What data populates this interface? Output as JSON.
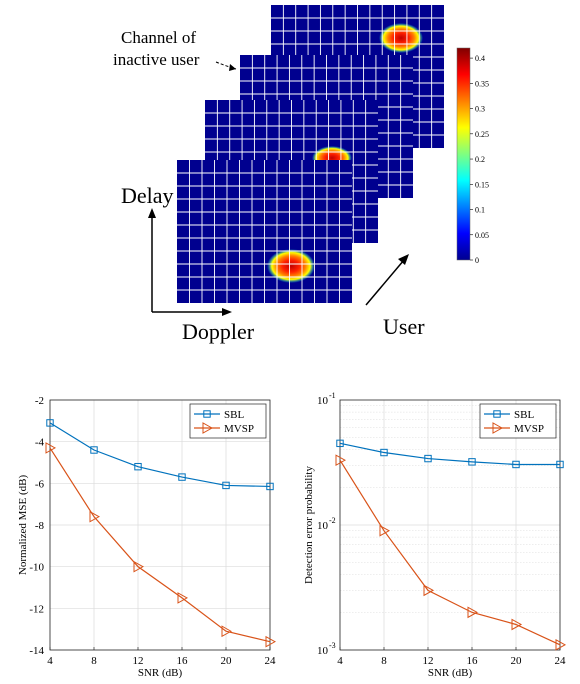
{
  "figure": {
    "annotation_label_line1": "Channel of",
    "annotation_label_line2": "inactive user",
    "axis_delay": "Delay",
    "axis_doppler": "Doppler",
    "axis_user": "User",
    "colorbar_ticks": [
      "0.4",
      "0.35",
      "0.3",
      "0.25",
      "0.2",
      "0.15",
      "0.1",
      "0.05",
      "0"
    ],
    "colormap": "jet",
    "grid_background_color": "#00008f",
    "hotspot_colors": [
      "#ffff00",
      "#ff8000",
      "#ff2000",
      "#c00000"
    ]
  },
  "chart_data": [
    {
      "type": "line",
      "xlabel": "SNR (dB)",
      "ylabel": "Normalized MSE (dB)",
      "x": [
        4,
        8,
        12,
        16,
        20,
        24
      ],
      "xticks": [
        "4",
        "8",
        "12",
        "16",
        "20",
        "24"
      ],
      "yticks": [
        "-2",
        "-4",
        "-6",
        "-8",
        "-10",
        "-12",
        "-14"
      ],
      "xlim": [
        4,
        24
      ],
      "ylim": [
        -14,
        -2
      ],
      "yscale": "linear",
      "grid": true,
      "legend_position": "top-right",
      "series": [
        {
          "name": "SBL",
          "color": "#0072bd",
          "marker": "square",
          "values": [
            -3.1,
            -4.4,
            -5.2,
            -5.7,
            -6.1,
            -6.15
          ]
        },
        {
          "name": "MVSP",
          "color": "#d95319",
          "marker": "triangle-right",
          "values": [
            -4.3,
            -7.6,
            -10.0,
            -11.5,
            -13.1,
            -13.6
          ]
        }
      ]
    },
    {
      "type": "line",
      "xlabel": "SNR (dB)",
      "ylabel": "Detection error probability",
      "x": [
        4,
        8,
        12,
        16,
        20,
        24
      ],
      "xticks": [
        "4",
        "8",
        "12",
        "16",
        "20",
        "24"
      ],
      "yticks": [
        "10",
        "10",
        "10"
      ],
      "ytick_exponents": [
        "-1",
        "-2",
        "-3"
      ],
      "xlim": [
        4,
        24
      ],
      "ylim": [
        0.001,
        0.1
      ],
      "yscale": "log",
      "grid": true,
      "legend_position": "top-right",
      "series": [
        {
          "name": "SBL",
          "color": "#0072bd",
          "marker": "square",
          "values": [
            0.045,
            0.038,
            0.034,
            0.032,
            0.0305,
            0.0305
          ]
        },
        {
          "name": "MVSP",
          "color": "#d95319",
          "marker": "triangle-right",
          "values": [
            0.033,
            0.009,
            0.003,
            0.002,
            0.0016,
            0.0011
          ]
        }
      ]
    }
  ]
}
